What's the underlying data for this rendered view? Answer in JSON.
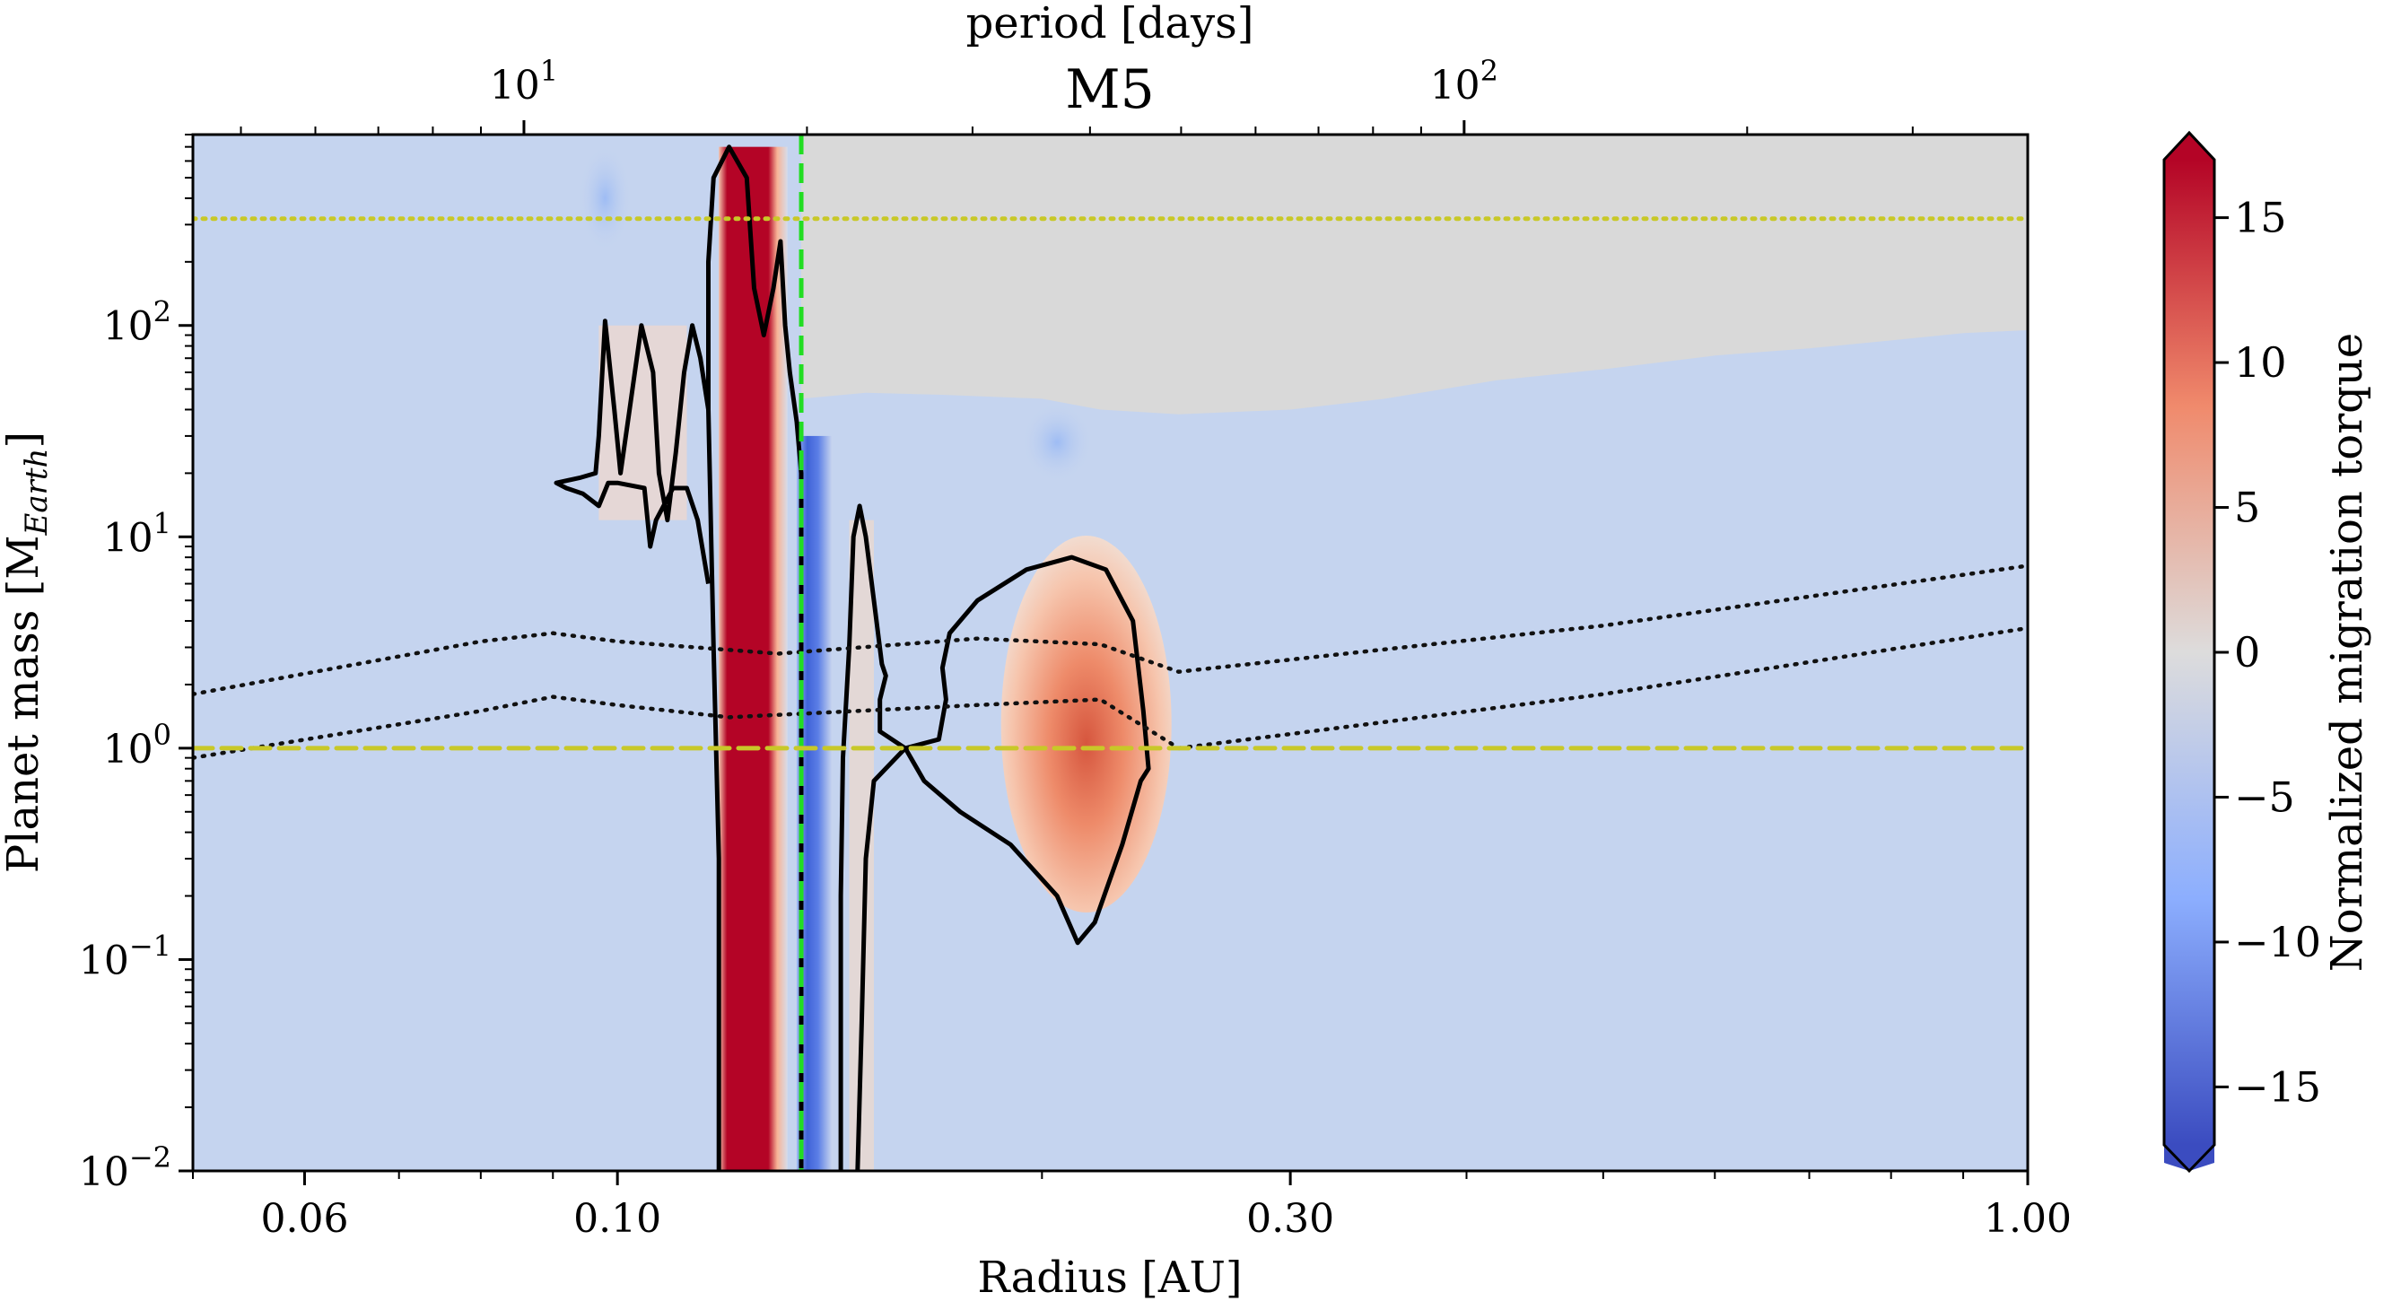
{
  "chart_data": {
    "type": "heatmap",
    "title": "M5",
    "xlabel": "Radius [AU]",
    "ylabel_main": "Planet mass [M",
    "ylabel_sub": "Earth",
    "ylabel_end": "]",
    "top_xlabel": "period [days]",
    "x_scale": "log",
    "y_scale": "log",
    "xlim": [
      0.05,
      1.0
    ],
    "ylim": [
      0.01,
      800
    ],
    "x_ticks": [
      {
        "value": 0.06,
        "label": "0.06"
      },
      {
        "value": 0.1,
        "label": "0.10"
      },
      {
        "value": 0.3,
        "label": "0.30"
      },
      {
        "value": 1.0,
        "label": "1.00"
      }
    ],
    "y_ticks": [
      {
        "value": 0.01,
        "base": "10",
        "exp": "−2"
      },
      {
        "value": 0.1,
        "base": "10",
        "exp": "−1"
      },
      {
        "value": 1,
        "base": "10",
        "exp": "0"
      },
      {
        "value": 10,
        "base": "10",
        "exp": "1"
      },
      {
        "value": 100,
        "base": "10",
        "exp": "2"
      }
    ],
    "top_ticks": [
      {
        "value": 10,
        "base": "10",
        "exp": "1"
      },
      {
        "value": 100,
        "base": "10",
        "exp": "2"
      }
    ],
    "colorbar": {
      "label": "Normalized migration torque",
      "range": [
        -17,
        17
      ],
      "cmap": "coolwarm",
      "extend": "both",
      "ticks": [
        {
          "value": 15,
          "label": "15"
        },
        {
          "value": 10,
          "label": "10"
        },
        {
          "value": 5,
          "label": "5"
        },
        {
          "value": 0,
          "label": "0"
        },
        {
          "value": -5,
          "label": "−5"
        },
        {
          "value": -10,
          "label": "−10"
        },
        {
          "value": -15,
          "label": "−15"
        }
      ]
    },
    "reference_lines": [
      {
        "name": "ice-line-radius",
        "orientation": "vertical",
        "value": 0.135,
        "color": "#22dd22",
        "style": "dashed"
      },
      {
        "name": "one-earth-mass",
        "orientation": "horizontal",
        "value": 1.0,
        "color": "#c8c828",
        "style": "dashed"
      },
      {
        "name": "upper-mass-limit",
        "orientation": "horizontal",
        "value": 320,
        "color": "#c8c828",
        "style": "dotted"
      }
    ],
    "dotted_tracks": [
      {
        "name": "upper-track",
        "points": [
          [
            0.05,
            1.8
          ],
          [
            0.08,
            3.2
          ],
          [
            0.09,
            3.5
          ],
          [
            0.1,
            3.2
          ],
          [
            0.13,
            2.8
          ],
          [
            0.18,
            3.3
          ],
          [
            0.22,
            3.1
          ],
          [
            0.25,
            2.3
          ],
          [
            0.5,
            3.8
          ],
          [
            1.0,
            7.3
          ]
        ]
      },
      {
        "name": "lower-track",
        "points": [
          [
            0.05,
            0.9
          ],
          [
            0.08,
            1.5
          ],
          [
            0.09,
            1.75
          ],
          [
            0.1,
            1.6
          ],
          [
            0.12,
            1.4
          ],
          [
            0.18,
            1.6
          ],
          [
            0.22,
            1.7
          ],
          [
            0.25,
            1.0
          ],
          [
            0.5,
            1.8
          ],
          [
            1.0,
            3.7
          ]
        ]
      }
    ],
    "features": {
      "gray_region": {
        "description": "undefined region",
        "color": "#d9d9d9"
      },
      "blue_region": {
        "color": "#c5d4ef"
      },
      "red_strip": {
        "x_min": 0.118,
        "x_max": 0.132,
        "value": 17
      },
      "blue_strip": {
        "x_min": 0.134,
        "x_max": 0.142,
        "value": -15
      },
      "red_blob": {
        "x_center": 0.215,
        "y_center": 1.3,
        "value": 8
      }
    }
  }
}
